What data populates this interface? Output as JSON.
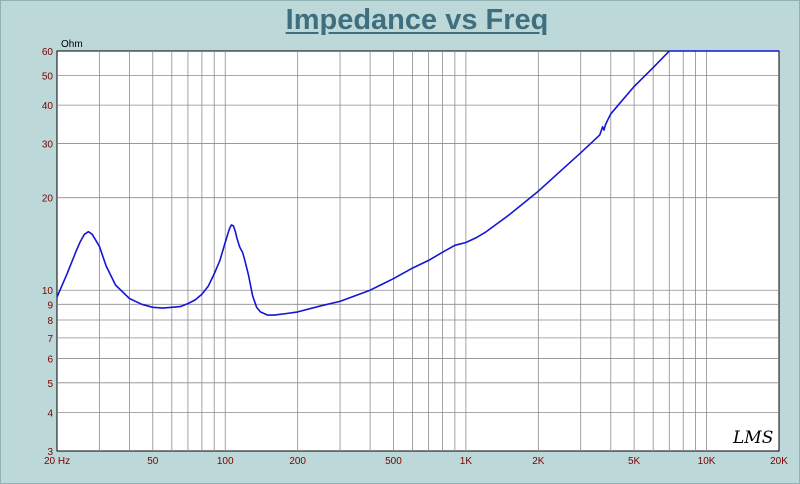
{
  "title": "Impedance vs Freq",
  "watermark": "LMS",
  "colors": {
    "background": "#bcd8d8",
    "plot_background": "#ffffff",
    "grid": "#8c8c8c",
    "curve": "#1515d6",
    "tick_labels": "#7a0000",
    "title": "#3f6f7f"
  },
  "chart_data": {
    "type": "line",
    "title": "Impedance vs Freq",
    "xscale": "log",
    "yscale": "log",
    "xlim": [
      20,
      20000
    ],
    "ylim": [
      3,
      60
    ],
    "ylabel": "Ohm",
    "grid": true,
    "x_tick_labels": [
      {
        "value": 20,
        "label": "20  Hz"
      },
      {
        "value": 50,
        "label": "50"
      },
      {
        "value": 100,
        "label": "100"
      },
      {
        "value": 200,
        "label": "200"
      },
      {
        "value": 500,
        "label": "500"
      },
      {
        "value": 1000,
        "label": "1K"
      },
      {
        "value": 2000,
        "label": "2K"
      },
      {
        "value": 5000,
        "label": "5K"
      },
      {
        "value": 10000,
        "label": "10K"
      },
      {
        "value": 20000,
        "label": "20K"
      }
    ],
    "y_tick_labels": [
      {
        "value": 3,
        "label": "3"
      },
      {
        "value": 4,
        "label": "4"
      },
      {
        "value": 5,
        "label": "5"
      },
      {
        "value": 6,
        "label": "6"
      },
      {
        "value": 7,
        "label": "7"
      },
      {
        "value": 8,
        "label": "8"
      },
      {
        "value": 9,
        "label": "9"
      },
      {
        "value": 10,
        "label": "10"
      },
      {
        "value": 20,
        "label": "20"
      },
      {
        "value": 30,
        "label": "30"
      },
      {
        "value": 40,
        "label": "40"
      },
      {
        "value": 50,
        "label": "50"
      },
      {
        "value": 60,
        "label": "60"
      }
    ],
    "series": [
      {
        "x": [
          20,
          22,
          24,
          25,
          26,
          27,
          28,
          30,
          32,
          35,
          40,
          45,
          50,
          55,
          60,
          65,
          70,
          75,
          80,
          85,
          90,
          95,
          100,
          104,
          106,
          108,
          110,
          112,
          115,
          118,
          120,
          125,
          130,
          135,
          140,
          150,
          160,
          180,
          200,
          250,
          300,
          400,
          500,
          600,
          700,
          800,
          900,
          1000,
          1100,
          1200,
          1500,
          2000,
          3000,
          3600,
          3700,
          3750,
          3800,
          3900,
          4000,
          5000,
          6000,
          7000,
          8000,
          9000,
          10000,
          20000
        ],
        "y": [
          9.5,
          11.3,
          13.4,
          14.4,
          15.2,
          15.5,
          15.2,
          13.9,
          12.0,
          10.4,
          9.4,
          9.0,
          8.8,
          8.75,
          8.8,
          8.85,
          9.05,
          9.3,
          9.7,
          10.3,
          11.3,
          12.5,
          14.3,
          15.8,
          16.3,
          16.2,
          15.6,
          14.7,
          13.8,
          13.3,
          12.7,
          11.2,
          9.6,
          8.8,
          8.5,
          8.3,
          8.3,
          8.4,
          8.5,
          8.9,
          9.2,
          10.0,
          10.9,
          11.8,
          12.5,
          13.3,
          14.0,
          14.3,
          14.8,
          15.4,
          17.5,
          21.0,
          28.0,
          32.0,
          34.0,
          33.2,
          34.5,
          36.0,
          37.5,
          46.0,
          53.0,
          60.0,
          60.0,
          60.0,
          60.0,
          60.0
        ]
      }
    ]
  }
}
